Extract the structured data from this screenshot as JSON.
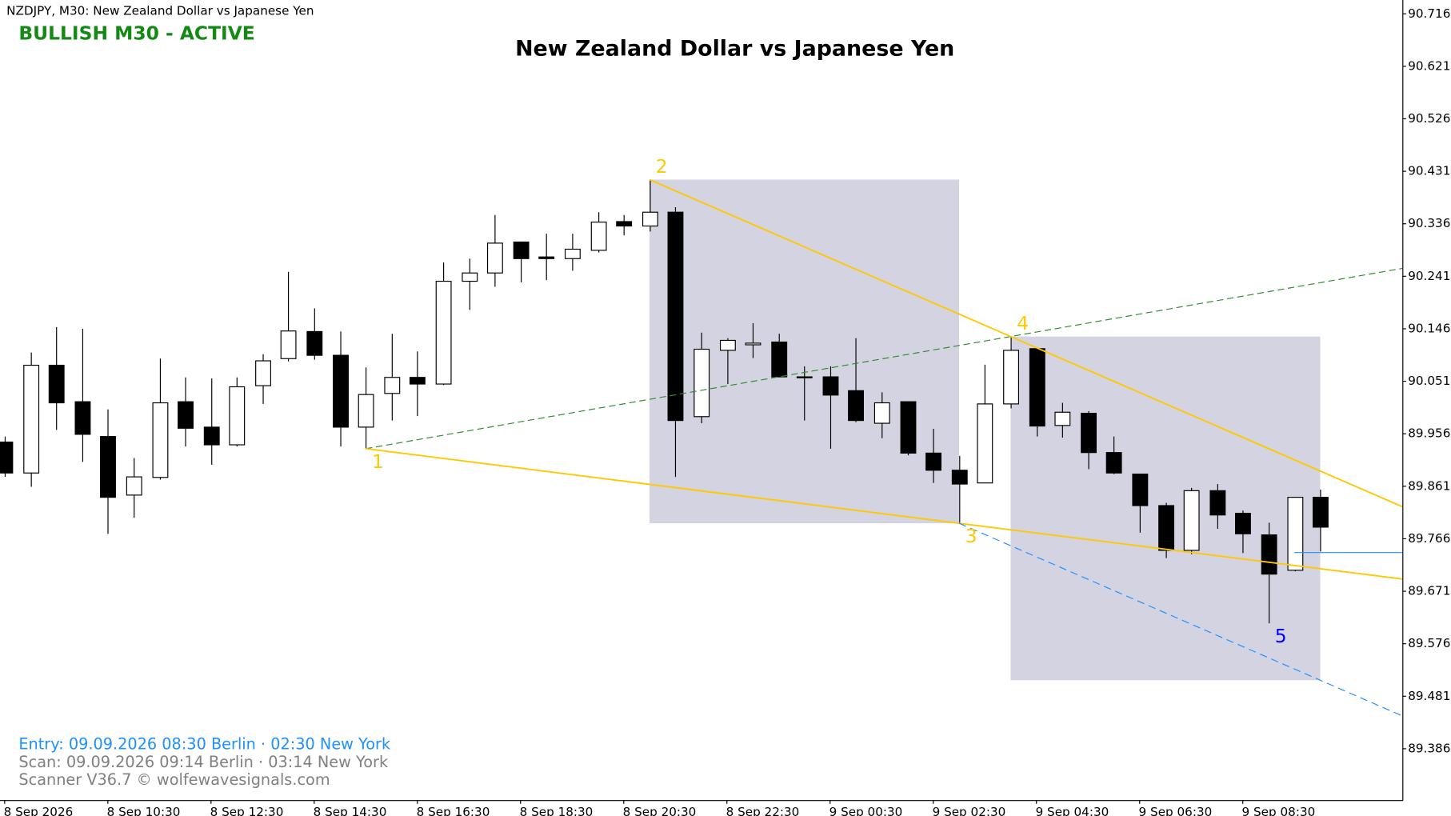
{
  "chart_data": {
    "type": "candlestick",
    "symbol_label": "NZDJPY, M30:  New Zealand Dollar vs Japanese Yen",
    "status": "BULLISH M30 - ACTIVE",
    "status_color": "#138a13",
    "title": "New Zealand Dollar vs Japanese Yen",
    "footer": [
      {
        "text": "Entry: 09.09.2026  08:30 Berlin · 02:30 New York",
        "color": "#1e90ff"
      },
      {
        "text": "Scan:  09.09.2026  09:14 Berlin · 03:14 New York",
        "color": "#808080"
      },
      {
        "text": "Scanner V36.7   © wolfewavesignals.com",
        "color": "#808080"
      }
    ],
    "categories": [
      "8 Sep 2026",
      null,
      null,
      null,
      "8 Sep 10:30",
      null,
      null,
      null,
      "8 Sep 12:30",
      null,
      null,
      null,
      "8 Sep 14:30",
      null,
      null,
      null,
      "8 Sep 16:30",
      null,
      null,
      null,
      "8 Sep 18:30",
      null,
      null,
      null,
      "8 Sep 20:30",
      null,
      null,
      null,
      "8 Sep 22:30",
      null,
      null,
      null,
      "9 Sep 00:30",
      null,
      null,
      null,
      "9 Sep 02:30",
      null,
      null,
      null,
      "9 Sep 04:30",
      null,
      null,
      null,
      "9 Sep 06:30",
      null,
      null,
      null,
      "9 Sep 08:30",
      null,
      null,
      null
    ],
    "open": [
      89.941,
      89.885,
      90.08,
      90.014,
      89.951,
      89.845,
      89.877,
      90.014,
      89.968,
      89.936,
      90.043,
      90.092,
      90.141,
      90.098,
      89.968,
      90.029,
      90.058,
      90.046,
      90.232,
      90.247,
      90.303,
      90.276,
      90.273,
      90.288,
      90.34,
      90.332,
      90.357,
      89.987,
      90.107,
      90.117,
      90.122,
      90.059,
      90.059,
      90.034,
      89.975,
      90.014,
      89.921,
      89.89,
      89.867,
      90.01,
      90.11,
      89.971,
      89.993,
      89.922,
      89.883,
      89.826,
      89.745,
      89.853,
      89.812,
      89.773,
      89.709,
      89.841
    ],
    "high": [
      89.951,
      90.103,
      90.149,
      90.146,
      90.0,
      89.912,
      90.092,
      90.058,
      90.056,
      90.058,
      90.1,
      90.249,
      90.183,
      90.141,
      90.076,
      90.137,
      90.105,
      90.266,
      90.273,
      90.352,
      90.303,
      90.318,
      90.318,
      90.357,
      90.352,
      90.416,
      90.366,
      90.139,
      90.129,
      90.156,
      90.137,
      90.078,
      90.078,
      90.129,
      90.031,
      90.014,
      89.965,
      89.916,
      90.081,
      90.132,
      90.11,
      90.012,
      89.997,
      89.951,
      89.883,
      89.831,
      89.858,
      89.865,
      89.817,
      89.795,
      89.841,
      89.855
    ],
    "low": [
      89.878,
      89.86,
      89.963,
      89.905,
      89.775,
      89.804,
      89.873,
      89.933,
      89.9,
      89.933,
      90.01,
      90.087,
      90.09,
      89.933,
      89.929,
      89.98,
      89.988,
      90.044,
      90.18,
      90.222,
      90.23,
      90.234,
      90.251,
      90.284,
      90.315,
      90.322,
      89.878,
      89.975,
      90.046,
      90.093,
      90.058,
      89.98,
      89.929,
      89.977,
      89.948,
      89.917,
      89.867,
      89.794,
      89.867,
      90.002,
      89.951,
      89.949,
      89.892,
      89.883,
      89.777,
      89.731,
      89.738,
      89.784,
      89.74,
      89.613,
      89.707,
      89.743
    ],
    "close": [
      89.885,
      90.08,
      90.012,
      89.955,
      89.841,
      89.878,
      90.012,
      89.966,
      89.936,
      90.041,
      90.088,
      90.142,
      90.098,
      89.968,
      90.027,
      90.058,
      90.046,
      90.232,
      90.247,
      90.301,
      90.273,
      90.273,
      90.29,
      90.339,
      90.332,
      90.357,
      89.98,
      90.109,
      90.125,
      90.12,
      90.059,
      90.058,
      90.026,
      89.98,
      90.012,
      89.921,
      89.89,
      89.865,
      90.01,
      90.107,
      89.97,
      89.995,
      89.922,
      89.885,
      89.826,
      89.745,
      89.853,
      89.809,
      89.775,
      89.702,
      89.841,
      89.787
    ],
    "up_color": "#ffffff",
    "down_color": "#000000",
    "ylim": [
      89.293,
      90.741
    ],
    "yticks": [
      90.716,
      90.621,
      90.526,
      90.431,
      90.336,
      90.241,
      90.146,
      90.051,
      89.956,
      89.861,
      89.766,
      89.671,
      89.576,
      89.481,
      89.386
    ],
    "wave_points": [
      {
        "label": "1",
        "index": 14,
        "value": 89.929,
        "color": "#ffc800"
      },
      {
        "label": "2",
        "index": 25,
        "value": 90.416,
        "color": "#ffc800"
      },
      {
        "label": "3",
        "index": 37,
        "value": 89.794,
        "color": "#ffc800"
      },
      {
        "label": "4",
        "index": 39,
        "value": 90.132,
        "color": "#ffc800"
      },
      {
        "label": "5",
        "index": 49,
        "value": 89.613,
        "color": "#0000ff"
      }
    ],
    "wave_line_color": "#ffc800",
    "trend_line_color": "#2e8b2e",
    "target_line_color": "#1e90ff",
    "box_color": "#d3d3e1",
    "entry_index": 50,
    "entry_line": 89.741
  }
}
